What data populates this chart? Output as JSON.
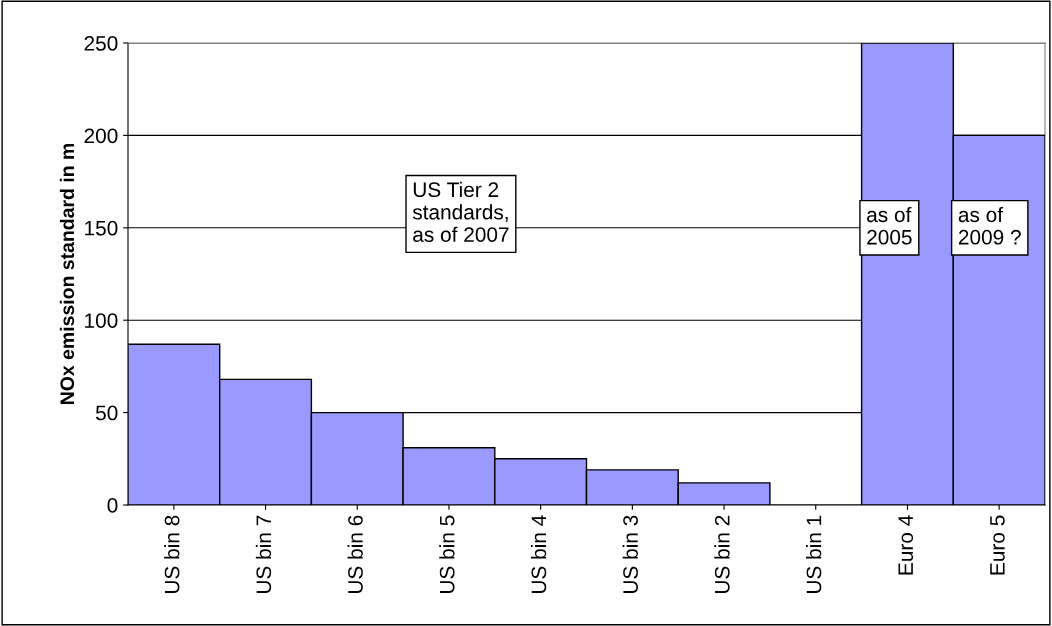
{
  "chart_data": {
    "type": "bar",
    "ylabel": "NOx emission standard in m",
    "categories": [
      "US bin 8",
      "US bin 7",
      "US bin 6",
      "US bin 5",
      "US bin 4",
      "US bin 3",
      "US bin 2",
      "US bin 1",
      "Euro 4",
      "Euro 5"
    ],
    "values": [
      87,
      68,
      50,
      31,
      25,
      19,
      12,
      0,
      250,
      200
    ],
    "color": "#9999ff",
    "ylim": [
      0,
      250
    ],
    "yticks": [
      0,
      50,
      100,
      150,
      200,
      250
    ],
    "grid": "y",
    "annotations": [
      "US Tier 2\nstandards,\nas of 2007",
      "as of\n2005",
      "as of\n2009 ?"
    ]
  }
}
